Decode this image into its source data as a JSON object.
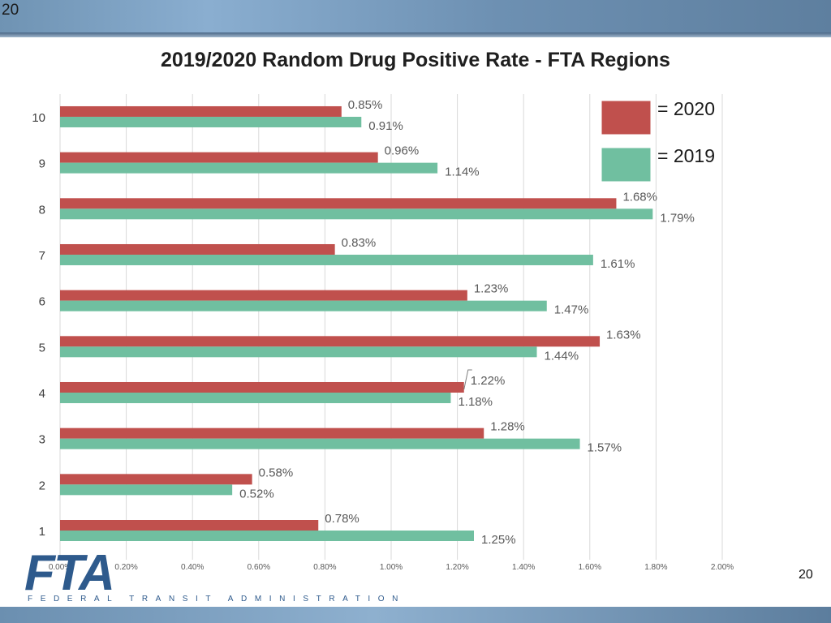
{
  "header": {
    "slide_number": "20"
  },
  "footer": {
    "logo_text": "FTA",
    "agency_text": "FEDERAL TRANSIT ADMINISTRATION",
    "slide_number": "20"
  },
  "colors": {
    "series_2020": "#c0504d",
    "series_2019": "#70bfa0"
  },
  "chart_data": {
    "type": "bar",
    "orientation": "horizontal",
    "title": "2019/2020 Random Drug Positive Rate - FTA Regions",
    "categories": [
      "1",
      "2",
      "3",
      "4",
      "5",
      "6",
      "7",
      "8",
      "9",
      "10"
    ],
    "series": [
      {
        "name": "2020",
        "legend_label": "= 2020",
        "values": [
          0.78,
          0.58,
          1.28,
          1.22,
          1.63,
          1.23,
          0.83,
          1.68,
          0.96,
          0.85
        ],
        "labels": [
          "0.78%",
          "0.58%",
          "1.28%",
          "1.22%",
          "1.63%",
          "1.23%",
          "0.83%",
          "1.68%",
          "0.96%",
          "0.85%"
        ]
      },
      {
        "name": "2019",
        "legend_label": "= 2019",
        "values": [
          1.25,
          0.52,
          1.57,
          1.18,
          1.44,
          1.47,
          1.61,
          1.79,
          1.14,
          0.91
        ],
        "labels": [
          "1.25%",
          "0.52%",
          "1.57%",
          "1.18%",
          "1.44%",
          "1.47%",
          "1.61%",
          "1.79%",
          "1.14%",
          "0.91%"
        ]
      }
    ],
    "xlim": [
      0,
      2.0
    ],
    "xticks": [
      0,
      0.2,
      0.4,
      0.6,
      0.8,
      1.0,
      1.2,
      1.4,
      1.6,
      1.8,
      2.0
    ],
    "xtick_labels": [
      "0.00%",
      "0.20%",
      "0.40%",
      "0.60%",
      "0.80%",
      "1.00%",
      "1.20%",
      "1.40%",
      "1.60%",
      "1.80%",
      "2.00%"
    ],
    "grid": true,
    "legend_position": "top-right"
  }
}
